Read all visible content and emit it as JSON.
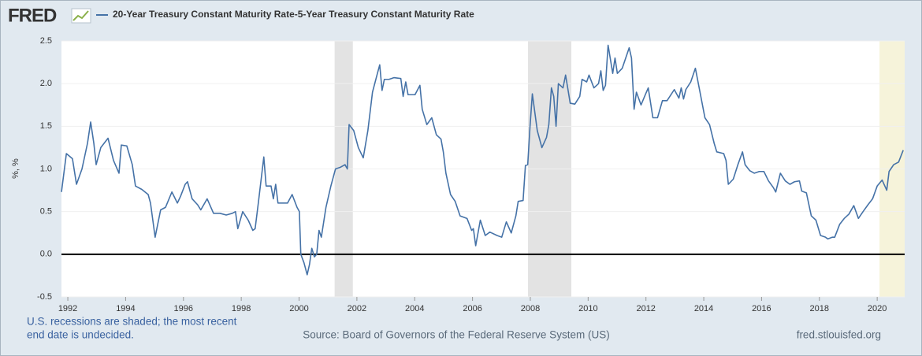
{
  "chart_data": {
    "type": "line",
    "logo": "FRED",
    "ylabel": "%, %",
    "note": [
      "U.S. recessions are shaded; the most recent",
      "end date is undecided."
    ],
    "source": "Source: Board of Governors of the Federal Reserve System (US)",
    "url": "fred.stlouisfed.org",
    "xlim": [
      1991.78,
      2020.95
    ],
    "ylim": [
      -0.5,
      2.5
    ],
    "xticks": [
      1992,
      1994,
      1996,
      1998,
      2000,
      2002,
      2004,
      2006,
      2008,
      2010,
      2012,
      2014,
      2016,
      2018,
      2020
    ],
    "yticks": [
      -0.5,
      {
        "value": 0,
        "label": "0.0"
      },
      0.5,
      {
        "value": 1,
        "label": "1.0"
      },
      1.5,
      {
        "value": 2,
        "label": "2.0"
      },
      2.5
    ],
    "grid": true,
    "recessions": [
      {
        "start": 2001.23,
        "end": 2001.86,
        "color": "#e3e3e3"
      },
      {
        "start": 2007.92,
        "end": 2009.42,
        "color": "#e3e3e3"
      },
      {
        "start": 2020.08,
        "end": 2020.95,
        "color": "#f6f3da"
      }
    ],
    "x": [
      1991.78,
      1991.95,
      1992.16,
      1992.3,
      1992.49,
      1992.68,
      1992.79,
      1992.9,
      1992.98,
      1993.14,
      1993.39,
      1993.58,
      1993.77,
      1993.85,
      1994.04,
      1994.23,
      1994.34,
      1994.56,
      1994.78,
      1994.86,
      1995.02,
      1995.21,
      1995.38,
      1995.6,
      1995.79,
      1995.9,
      1996.06,
      1996.14,
      1996.3,
      1996.49,
      1996.6,
      1996.82,
      1997.04,
      1997.26,
      1997.48,
      1997.69,
      1997.8,
      1997.88,
      1998.05,
      1998.24,
      1998.4,
      1998.48,
      1998.59,
      1998.78,
      1998.86,
      1999.03,
      1999.11,
      1999.19,
      1999.27,
      1999.44,
      1999.6,
      1999.76,
      1999.93,
      2000.01,
      2000.06,
      2000.17,
      2000.28,
      2000.36,
      2000.44,
      2000.53,
      2000.61,
      2000.69,
      2000.77,
      2000.93,
      2001.1,
      2001.26,
      2001.43,
      2001.59,
      2001.67,
      2001.73,
      2001.89,
      2002.05,
      2002.22,
      2002.38,
      2002.54,
      2002.71,
      2002.79,
      2002.87,
      2002.95,
      2003.11,
      2003.28,
      2003.52,
      2003.6,
      2003.69,
      2003.77,
      2004.01,
      2004.18,
      2004.26,
      2004.42,
      2004.59,
      2004.75,
      2004.91,
      2004.99,
      2005.08,
      2005.24,
      2005.4,
      2005.57,
      2005.81,
      2005.97,
      2006.03,
      2006.11,
      2006.27,
      2006.44,
      2006.6,
      2006.85,
      2007.01,
      2007.17,
      2007.34,
      2007.5,
      2007.58,
      2007.75,
      2007.83,
      2007.91,
      2007.99,
      2008.07,
      2008.24,
      2008.4,
      2008.56,
      2008.64,
      2008.73,
      2008.81,
      2008.89,
      2008.97,
      2009.13,
      2009.22,
      2009.38,
      2009.54,
      2009.71,
      2009.79,
      2009.95,
      2010.03,
      2010.2,
      2010.36,
      2010.44,
      2010.52,
      2010.6,
      2010.69,
      2010.85,
      2010.93,
      2011.01,
      2011.18,
      2011.42,
      2011.5,
      2011.59,
      2011.67,
      2011.83,
      2011.99,
      2012.08,
      2012.24,
      2012.4,
      2012.57,
      2012.73,
      2012.98,
      2013.14,
      2013.22,
      2013.3,
      2013.38,
      2013.55,
      2013.71,
      2013.87,
      2014.04,
      2014.2,
      2014.36,
      2014.45,
      2014.69,
      2014.77,
      2014.85,
      2015.02,
      2015.18,
      2015.34,
      2015.43,
      2015.59,
      2015.75,
      2015.92,
      2016.08,
      2016.24,
      2016.41,
      2016.49,
      2016.65,
      2016.82,
      2016.98,
      2017.14,
      2017.31,
      2017.39,
      2017.55,
      2017.72,
      2017.88,
      2018.04,
      2018.21,
      2018.29,
      2018.45,
      2018.53,
      2018.7,
      2018.86,
      2019.02,
      2019.19,
      2019.35,
      2019.51,
      2019.68,
      2019.84,
      2020.0,
      2020.17,
      2020.33,
      2020.41,
      2020.57,
      2020.74,
      2020.9
    ],
    "series": [
      {
        "name": "20-Year Treasury Constant Maturity Rate-5-Year Treasury Constant Maturity Rate",
        "color": "#4572a7",
        "values": [
          0.73,
          1.18,
          1.12,
          0.82,
          1.0,
          1.3,
          1.55,
          1.3,
          1.05,
          1.25,
          1.36,
          1.1,
          0.95,
          1.28,
          1.27,
          1.05,
          0.8,
          0.76,
          0.7,
          0.6,
          0.2,
          0.52,
          0.55,
          0.73,
          0.6,
          0.68,
          0.82,
          0.85,
          0.65,
          0.58,
          0.52,
          0.65,
          0.48,
          0.48,
          0.46,
          0.48,
          0.5,
          0.3,
          0.5,
          0.4,
          0.28,
          0.3,
          0.6,
          1.14,
          0.8,
          0.8,
          0.65,
          0.82,
          0.6,
          0.6,
          0.6,
          0.7,
          0.55,
          0.5,
          0.0,
          -0.1,
          -0.24,
          -0.12,
          0.07,
          -0.03,
          0.0,
          0.28,
          0.2,
          0.55,
          0.8,
          1.0,
          1.02,
          1.05,
          1.0,
          1.52,
          1.45,
          1.25,
          1.13,
          1.45,
          1.9,
          2.12,
          2.22,
          1.92,
          2.05,
          2.05,
          2.07,
          2.06,
          1.85,
          2.02,
          1.87,
          1.87,
          1.98,
          1.7,
          1.52,
          1.6,
          1.4,
          1.35,
          1.2,
          0.95,
          0.7,
          0.62,
          0.45,
          0.42,
          0.28,
          0.3,
          0.1,
          0.4,
          0.22,
          0.26,
          0.22,
          0.2,
          0.38,
          0.25,
          0.45,
          0.62,
          0.63,
          1.04,
          1.05,
          1.5,
          1.88,
          1.45,
          1.25,
          1.37,
          1.52,
          1.95,
          1.85,
          1.5,
          2.0,
          1.95,
          2.1,
          1.77,
          1.76,
          1.85,
          2.05,
          2.02,
          2.1,
          1.95,
          2.0,
          2.15,
          1.92,
          1.98,
          2.45,
          2.12,
          2.3,
          2.12,
          2.18,
          2.42,
          2.3,
          1.7,
          1.9,
          1.75,
          1.88,
          1.95,
          1.6,
          1.6,
          1.8,
          1.8,
          1.93,
          1.83,
          1.95,
          1.82,
          1.93,
          2.02,
          2.18,
          1.9,
          1.6,
          1.52,
          1.3,
          1.2,
          1.18,
          1.1,
          0.82,
          0.88,
          1.05,
          1.2,
          1.05,
          0.98,
          0.95,
          0.97,
          0.97,
          0.86,
          0.78,
          0.73,
          0.95,
          0.86,
          0.82,
          0.85,
          0.86,
          0.74,
          0.72,
          0.45,
          0.4,
          0.22,
          0.2,
          0.18,
          0.2,
          0.2,
          0.35,
          0.42,
          0.47,
          0.57,
          0.42,
          0.5,
          0.58,
          0.65,
          0.8,
          0.87,
          0.75,
          0.97,
          1.05,
          1.08,
          1.22
        ]
      }
    ]
  }
}
